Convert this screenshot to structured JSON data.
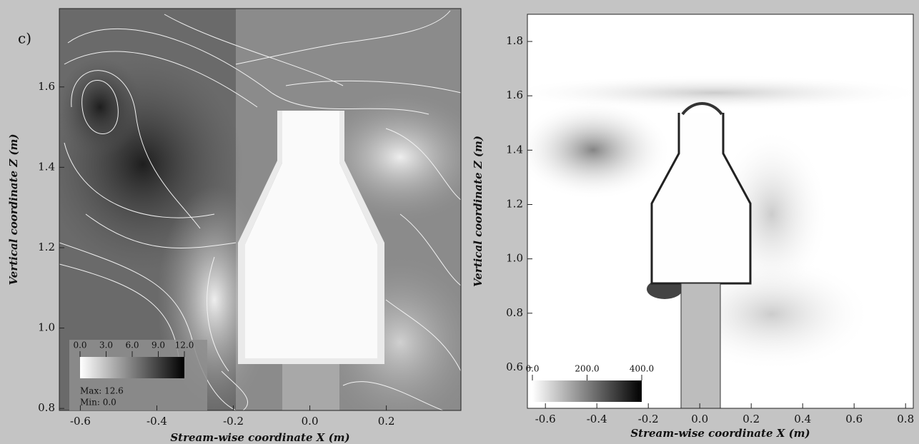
{
  "panel_label": "c)",
  "chart_data": [
    {
      "type": "contour",
      "xlabel": "Stream-wise coordinate X (m)",
      "ylabel": "Vertical coordinate Z (m)",
      "xlim": [
        -0.655,
        0.395
      ],
      "ylim": [
        0.795,
        1.795
      ],
      "xticks": [
        -0.6,
        -0.4,
        -0.2,
        {
          "value": 0,
          "label": "0.0"
        },
        0.2
      ],
      "yticks": [
        0.8,
        {
          "value": 1,
          "label": "1.0"
        },
        1.2,
        1.4,
        1.6
      ],
      "colorbar": {
        "lim": [
          0,
          12
        ],
        "ticks": [
          {
            "value": 0,
            "label": "0.0"
          },
          {
            "value": 3,
            "label": "3.0"
          },
          {
            "value": 6,
            "label": "6.0"
          },
          {
            "value": 9,
            "label": "9.0"
          },
          {
            "value": 12,
            "label": "12.0"
          }
        ]
      },
      "annotations": [
        "Max:  12.6",
        "Min:  0.0"
      ]
    },
    {
      "type": "contour",
      "xlabel": "Stream-wise coordinate X (m)",
      "ylabel": "Vertical coordinate Z (m)",
      "xlim": [
        -0.67,
        0.83
      ],
      "ylim": [
        0.45,
        1.9
      ],
      "xticks": [
        -0.6,
        -0.4,
        -0.2,
        {
          "value": 0,
          "label": "0.0"
        },
        0.2,
        0.4,
        0.6,
        0.8
      ],
      "yticks": [
        0.6,
        0.8,
        {
          "value": 1,
          "label": "1.0"
        },
        1.2,
        1.4,
        1.6,
        1.8
      ],
      "colorbar": {
        "lim": [
          0,
          400
        ],
        "ticks": [
          {
            "value": 0,
            "label": "0.0"
          },
          {
            "value": 200,
            "label": "200.0"
          },
          {
            "value": 400,
            "label": "400.0"
          }
        ]
      },
      "annotations": []
    }
  ]
}
